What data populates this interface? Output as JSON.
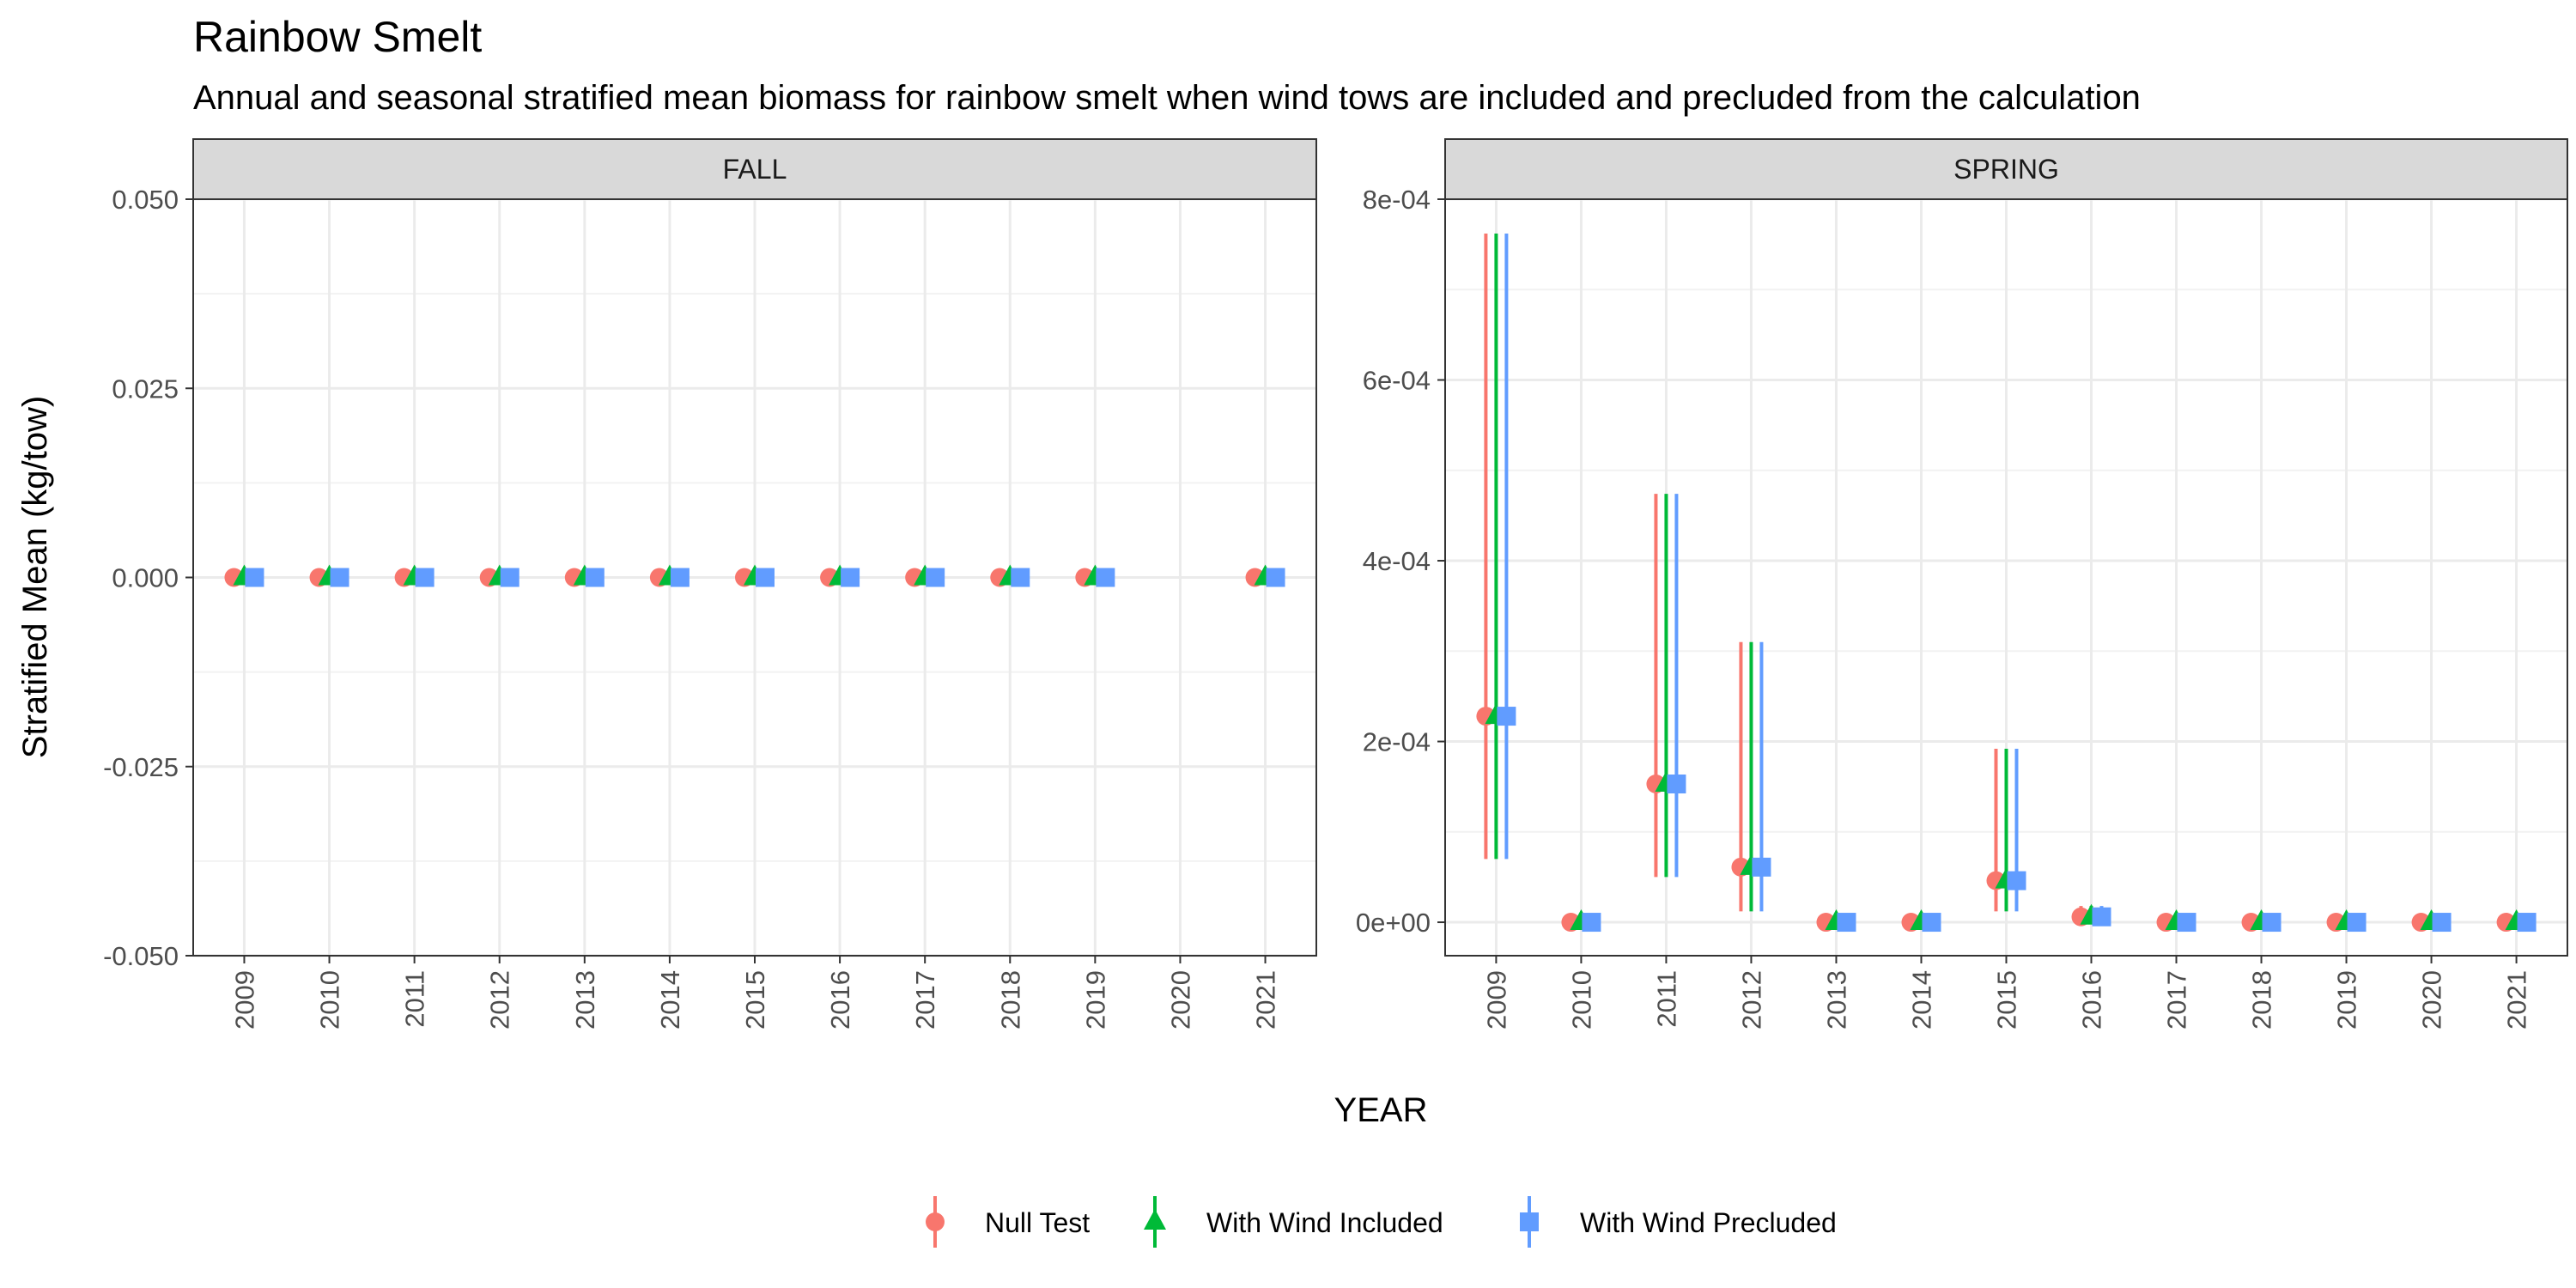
{
  "title": "Rainbow Smelt",
  "subtitle": "Annual and seasonal stratified mean biomass for rainbow smelt when wind tows are included and precluded from the calculation",
  "x_axis_title": "YEAR",
  "y_axis_title": "Stratified Mean (kg/tow)",
  "series": [
    {
      "name": "Null Test",
      "color": "#F8766D",
      "shape": "circle"
    },
    {
      "name": "With Wind Included",
      "color": "#00BA38",
      "shape": "triangle"
    },
    {
      "name": "With Wind Precluded",
      "color": "#619CFF",
      "shape": "square"
    }
  ],
  "chart_data": [
    {
      "type": "scatter",
      "panel": "FALL",
      "x_ticks": [
        "2009",
        "2010",
        "2011",
        "2012",
        "2013",
        "2014",
        "2015",
        "2016",
        "2017",
        "2018",
        "2019",
        "2020",
        "2021"
      ],
      "y_ticks": [
        "-0.050",
        "-0.025",
        "0.000",
        "0.025",
        "0.050"
      ],
      "ylim": [
        -0.05,
        0.05
      ],
      "y_tick_values": [
        -0.05,
        -0.025,
        0,
        0.025,
        0.05
      ],
      "points": [
        {
          "x": "2009",
          "values": [
            0,
            0,
            0
          ],
          "lower": [
            0,
            0,
            0
          ],
          "upper": [
            0,
            0,
            0
          ]
        },
        {
          "x": "2010",
          "values": [
            0,
            0,
            0
          ],
          "lower": [
            0,
            0,
            0
          ],
          "upper": [
            0,
            0,
            0
          ]
        },
        {
          "x": "2011",
          "values": [
            0,
            0,
            0
          ],
          "lower": [
            0,
            0,
            0
          ],
          "upper": [
            0,
            0,
            0
          ]
        },
        {
          "x": "2012",
          "values": [
            0,
            0,
            0
          ],
          "lower": [
            0,
            0,
            0
          ],
          "upper": [
            0,
            0,
            0
          ]
        },
        {
          "x": "2013",
          "values": [
            0,
            0,
            0
          ],
          "lower": [
            0,
            0,
            0
          ],
          "upper": [
            0,
            0,
            0
          ]
        },
        {
          "x": "2014",
          "values": [
            0,
            0,
            0
          ],
          "lower": [
            0,
            0,
            0
          ],
          "upper": [
            0,
            0,
            0
          ]
        },
        {
          "x": "2015",
          "values": [
            0,
            0,
            0
          ],
          "lower": [
            0,
            0,
            0
          ],
          "upper": [
            0,
            0,
            0
          ]
        },
        {
          "x": "2016",
          "values": [
            0,
            0,
            0
          ],
          "lower": [
            0,
            0,
            0
          ],
          "upper": [
            0,
            0,
            0
          ]
        },
        {
          "x": "2017",
          "values": [
            0,
            0,
            0
          ],
          "lower": [
            0,
            0,
            0
          ],
          "upper": [
            0,
            0,
            0
          ]
        },
        {
          "x": "2018",
          "values": [
            0,
            0,
            0
          ],
          "lower": [
            0,
            0,
            0
          ],
          "upper": [
            0,
            0,
            0
          ]
        },
        {
          "x": "2019",
          "values": [
            0,
            0,
            0
          ],
          "lower": [
            0,
            0,
            0
          ],
          "upper": [
            0,
            0,
            0
          ]
        },
        {
          "x": "2021",
          "values": [
            0,
            0,
            0
          ],
          "lower": [
            0,
            0,
            0
          ],
          "upper": [
            0,
            0,
            0
          ]
        }
      ]
    },
    {
      "type": "scatter",
      "panel": "SPRING",
      "x_ticks": [
        "2009",
        "2010",
        "2011",
        "2012",
        "2013",
        "2014",
        "2015",
        "2016",
        "2017",
        "2018",
        "2019",
        "2020",
        "2021"
      ],
      "y_ticks": [
        "0e+00",
        "2e-04",
        "4e-04",
        "6e-04",
        "8e-04"
      ],
      "ylim": [
        -3.7e-05,
        0.0008
      ],
      "y_tick_values": [
        0,
        0.0002,
        0.0004,
        0.0006,
        0.0008
      ],
      "points": [
        {
          "x": "2009",
          "values": [
            0.000228,
            0.000228,
            0.000228
          ],
          "lower": [
            7e-05,
            7e-05,
            7e-05
          ],
          "upper": [
            0.000762,
            0.000762,
            0.000762
          ]
        },
        {
          "x": "2010",
          "values": [
            0,
            0,
            0
          ],
          "lower": [
            0,
            0,
            0
          ],
          "upper": [
            0,
            0,
            0
          ]
        },
        {
          "x": "2011",
          "values": [
            0.000153,
            0.000153,
            0.000153
          ],
          "lower": [
            5e-05,
            5e-05,
            5e-05
          ],
          "upper": [
            0.000474,
            0.000474,
            0.000474
          ]
        },
        {
          "x": "2012",
          "values": [
            6.1e-05,
            6.1e-05,
            6.1e-05
          ],
          "lower": [
            1.2e-05,
            1.2e-05,
            1.2e-05
          ],
          "upper": [
            0.00031,
            0.00031,
            0.00031
          ]
        },
        {
          "x": "2013",
          "values": [
            0,
            0,
            0
          ],
          "lower": [
            0,
            0,
            0
          ],
          "upper": [
            0,
            0,
            0
          ]
        },
        {
          "x": "2014",
          "values": [
            0,
            0,
            0
          ],
          "lower": [
            0,
            0,
            0
          ],
          "upper": [
            0,
            0,
            0
          ]
        },
        {
          "x": "2015",
          "values": [
            4.6e-05,
            4.6e-05,
            4.6e-05
          ],
          "lower": [
            1.2e-05,
            1.2e-05,
            1.2e-05
          ],
          "upper": [
            0.000192,
            0.000192,
            0.000192
          ]
        },
        {
          "x": "2016",
          "values": [
            6e-06,
            6e-06,
            6e-06
          ],
          "lower": [
            0,
            0,
            0
          ],
          "upper": [
            1.8e-05,
            1.8e-05,
            1.8e-05
          ]
        },
        {
          "x": "2017",
          "values": [
            0,
            0,
            0
          ],
          "lower": [
            0,
            0,
            0
          ],
          "upper": [
            0,
            0,
            0
          ]
        },
        {
          "x": "2018",
          "values": [
            0,
            0,
            0
          ],
          "lower": [
            0,
            0,
            0
          ],
          "upper": [
            0,
            0,
            0
          ]
        },
        {
          "x": "2019",
          "values": [
            0,
            0,
            0
          ],
          "lower": [
            0,
            0,
            0
          ],
          "upper": [
            0,
            0,
            0
          ]
        },
        {
          "x": "2020",
          "values": [
            0,
            0,
            0
          ],
          "lower": [
            0,
            0,
            0
          ],
          "upper": [
            0,
            0,
            0
          ]
        },
        {
          "x": "2021",
          "values": [
            0,
            0,
            0
          ],
          "lower": [
            0,
            0,
            0
          ],
          "upper": [
            0,
            0,
            0
          ]
        }
      ]
    }
  ]
}
